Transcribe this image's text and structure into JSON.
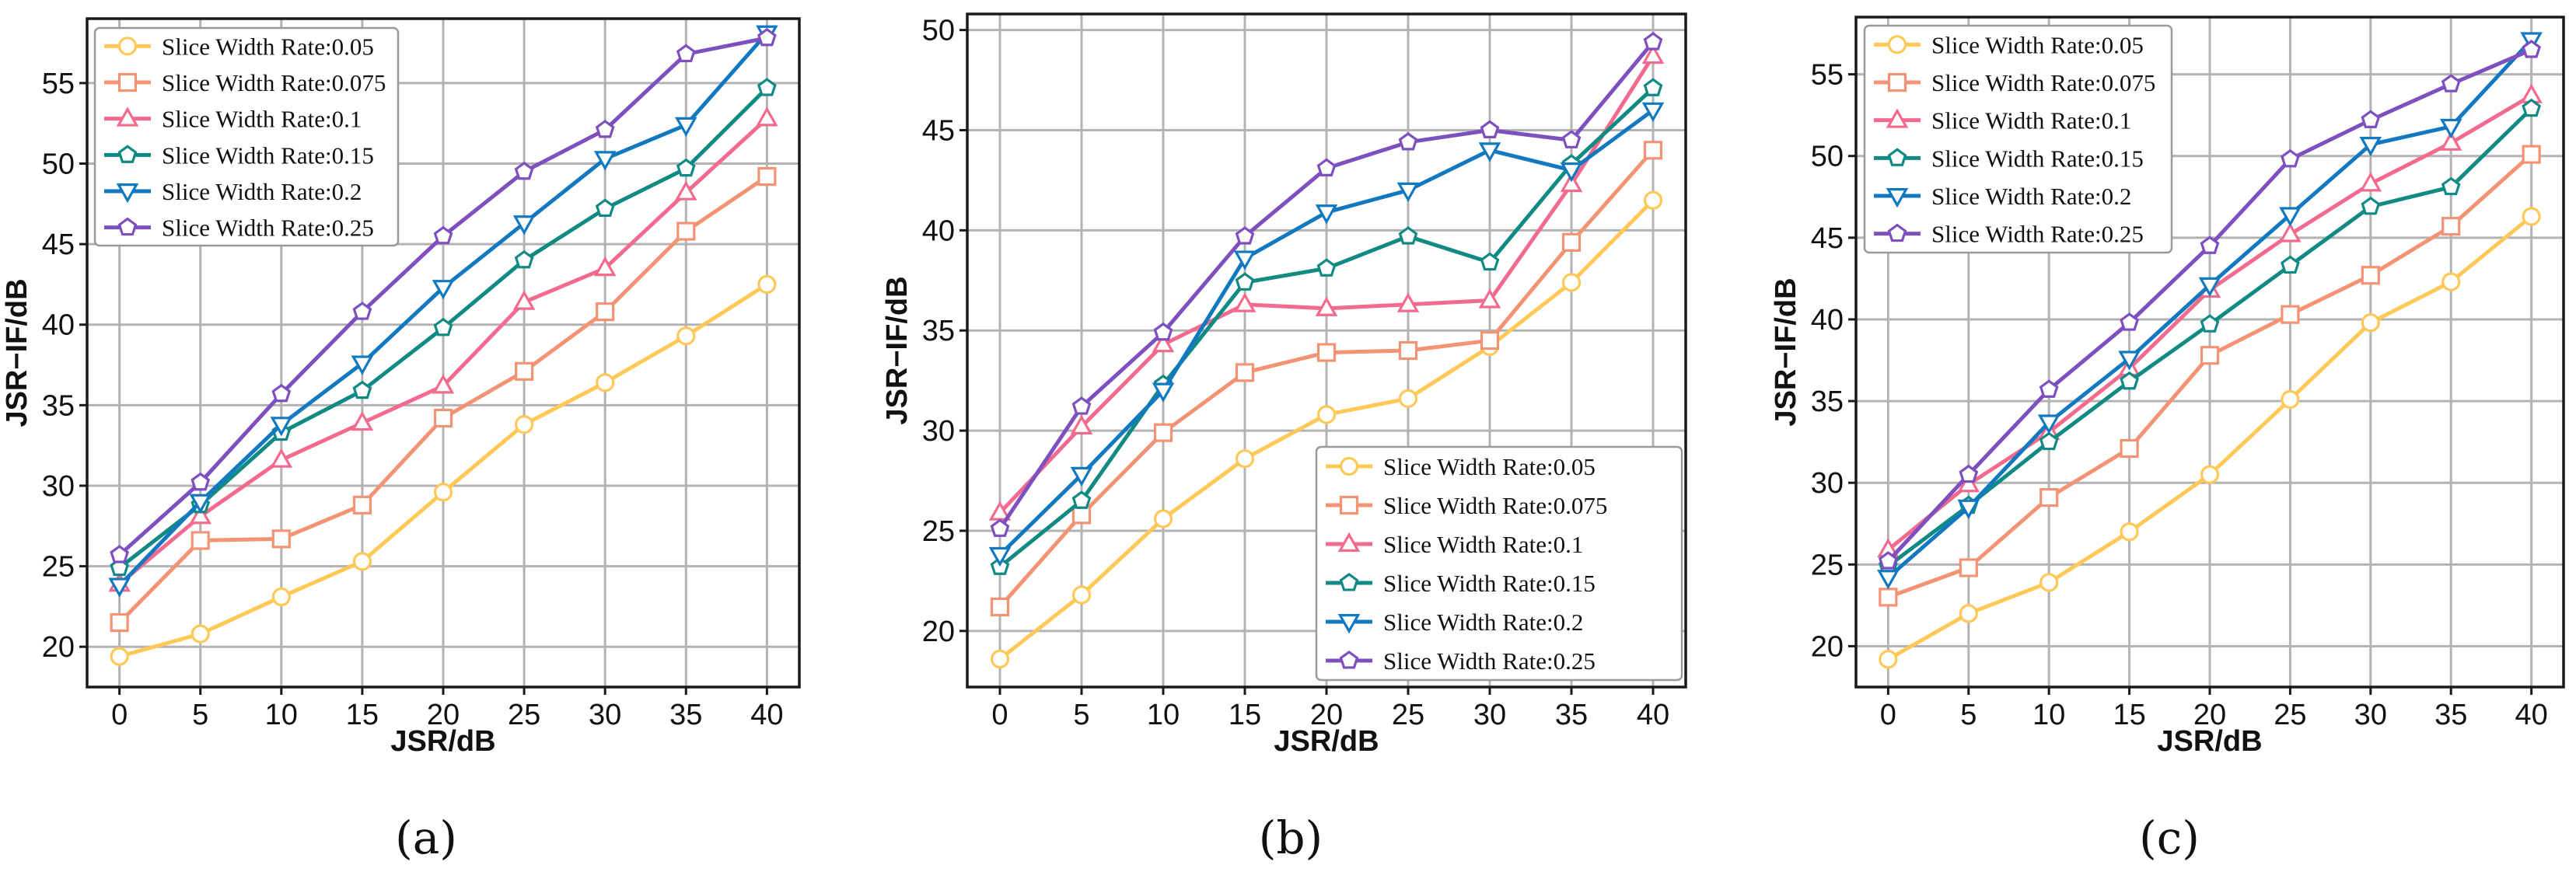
{
  "figure": {
    "colors": {
      "Slice Width Rate:0.05": "#FFC857",
      "Slice Width Rate:0.075": "#F39374",
      "Slice Width Rate:0.1": "#F26B8E",
      "Slice Width Rate:0.15": "#128A84",
      "Slice Width Rate:0.2": "#1279C0",
      "Slice Width Rate:0.25": "#7E4FBF"
    },
    "markers": {
      "Slice Width Rate:0.05": "circle",
      "Slice Width Rate:0.075": "square",
      "Slice Width Rate:0.1": "triangle-up",
      "Slice Width Rate:0.15": "pentagon",
      "Slice Width Rate:0.2": "triangle-down",
      "Slice Width Rate:0.25": "pentagon"
    }
  },
  "chart_data": [
    {
      "panel_label": "(a)",
      "type": "line",
      "xlabel": "JSR/dB",
      "ylabel": "JSR−IF/dB",
      "x": [
        0,
        5,
        10,
        15,
        20,
        25,
        30,
        35,
        40
      ],
      "xlim": [
        -2,
        42
      ],
      "ylim": [
        17.5,
        59
      ],
      "yticks": [
        20,
        25,
        30,
        35,
        40,
        45,
        50,
        55
      ],
      "grid": true,
      "legend_position": "top-left",
      "series": [
        {
          "name": "Slice Width Rate:0.05",
          "values": [
            19.4,
            20.8,
            23.1,
            25.3,
            29.6,
            33.8,
            36.4,
            39.3,
            42.5
          ]
        },
        {
          "name": "Slice Width Rate:0.075",
          "values": [
            21.5,
            26.6,
            26.7,
            28.8,
            34.2,
            37.1,
            40.8,
            45.8,
            49.2
          ]
        },
        {
          "name": "Slice Width Rate:0.1",
          "values": [
            23.9,
            28.1,
            31.6,
            33.9,
            36.2,
            41.4,
            43.5,
            48.2,
            52.8
          ]
        },
        {
          "name": "Slice Width Rate:0.15",
          "values": [
            24.9,
            28.8,
            33.3,
            35.9,
            39.8,
            44.0,
            47.2,
            49.7,
            54.7
          ]
        },
        {
          "name": "Slice Width Rate:0.2",
          "values": [
            23.8,
            29.0,
            33.8,
            37.6,
            42.3,
            46.3,
            50.3,
            52.4,
            58.1
          ]
        },
        {
          "name": "Slice Width Rate:0.25",
          "values": [
            25.7,
            30.2,
            35.7,
            40.8,
            45.5,
            49.5,
            52.1,
            56.8,
            57.8
          ]
        }
      ]
    },
    {
      "panel_label": "(b)",
      "type": "line",
      "xlabel": "JSR/dB",
      "ylabel": "JSR−IF/dB",
      "x": [
        0,
        5,
        10,
        15,
        20,
        25,
        30,
        35,
        40
      ],
      "xlim": [
        -2,
        42
      ],
      "ylim": [
        17.2,
        50.8
      ],
      "yticks": [
        20,
        25,
        30,
        35,
        40,
        45,
        50
      ],
      "grid": true,
      "legend_position": "bottom-right",
      "series": [
        {
          "name": "Slice Width Rate:0.05",
          "values": [
            18.6,
            21.8,
            25.6,
            28.6,
            30.8,
            31.6,
            34.2,
            37.4,
            41.5
          ]
        },
        {
          "name": "Slice Width Rate:0.075",
          "values": [
            21.2,
            25.8,
            29.9,
            32.9,
            33.9,
            34.0,
            34.5,
            39.4,
            44.0
          ]
        },
        {
          "name": "Slice Width Rate:0.1",
          "values": [
            25.9,
            30.2,
            34.3,
            36.3,
            36.1,
            36.3,
            36.5,
            42.3,
            48.7
          ]
        },
        {
          "name": "Slice Width Rate:0.15",
          "values": [
            23.2,
            26.5,
            32.3,
            37.4,
            38.1,
            39.7,
            38.4,
            43.3,
            47.1
          ]
        },
        {
          "name": "Slice Width Rate:0.2",
          "values": [
            23.8,
            27.8,
            32.0,
            38.6,
            40.9,
            42.0,
            44.0,
            43.0,
            46.0
          ]
        },
        {
          "name": "Slice Width Rate:0.25",
          "values": [
            25.1,
            31.2,
            34.9,
            39.7,
            43.1,
            44.4,
            45.0,
            44.5,
            49.4
          ]
        }
      ]
    },
    {
      "panel_label": "(c)",
      "type": "line",
      "xlabel": "JSR/dB",
      "ylabel": "JSR−IF/dB",
      "x": [
        0,
        5,
        10,
        15,
        20,
        25,
        30,
        35,
        40
      ],
      "xlim": [
        -2,
        42
      ],
      "ylim": [
        17.5,
        58.5
      ],
      "yticks": [
        20,
        25,
        30,
        35,
        40,
        45,
        50,
        55
      ],
      "grid": true,
      "legend_position": "top-left",
      "series": [
        {
          "name": "Slice Width Rate:0.05",
          "values": [
            19.2,
            22.0,
            23.9,
            27.0,
            30.5,
            35.1,
            39.8,
            42.3,
            46.3
          ]
        },
        {
          "name": "Slice Width Rate:0.075",
          "values": [
            23.0,
            24.8,
            29.1,
            32.1,
            37.8,
            40.3,
            42.7,
            45.7,
            50.1
          ]
        },
        {
          "name": "Slice Width Rate:0.1",
          "values": [
            25.9,
            29.9,
            33.1,
            37.0,
            41.8,
            45.2,
            48.3,
            50.8,
            53.7
          ]
        },
        {
          "name": "Slice Width Rate:0.15",
          "values": [
            24.9,
            28.6,
            32.5,
            36.2,
            39.7,
            43.3,
            46.9,
            48.1,
            52.9
          ]
        },
        {
          "name": "Slice Width Rate:0.2",
          "values": [
            24.2,
            28.5,
            33.7,
            37.6,
            42.1,
            46.4,
            50.7,
            51.8,
            57.1
          ]
        },
        {
          "name": "Slice Width Rate:0.25",
          "values": [
            25.2,
            30.5,
            35.7,
            39.8,
            44.5,
            49.8,
            52.2,
            54.4,
            56.5
          ]
        }
      ]
    }
  ]
}
